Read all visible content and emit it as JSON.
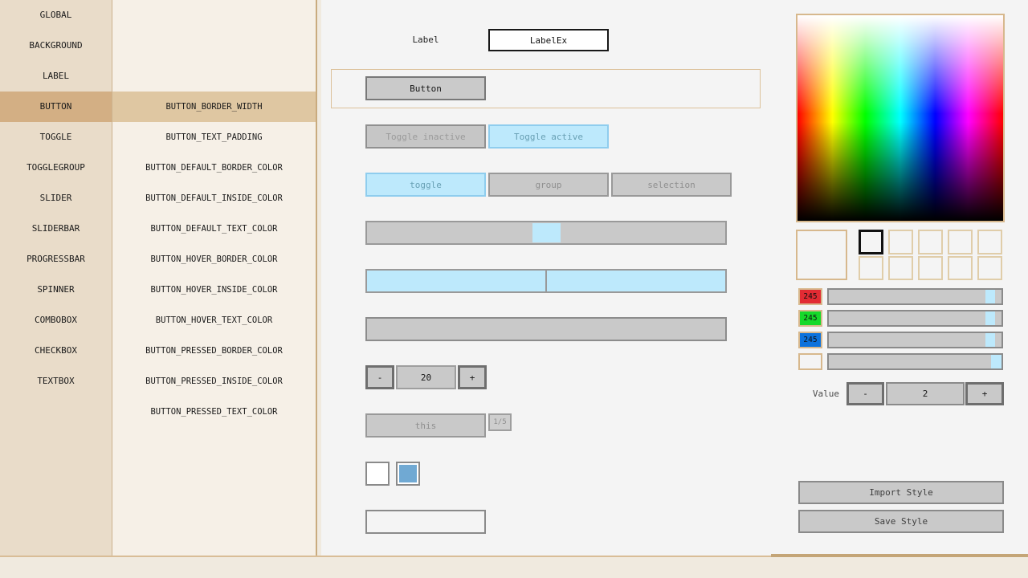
{
  "sidebar": {
    "items": [
      "GLOBAL",
      "BACKGROUND",
      "LABEL",
      "BUTTON",
      "TOGGLE",
      "TOGGLEGROUP",
      "SLIDER",
      "SLIDERBAR",
      "PROGRESSBAR",
      "SPINNER",
      "COMBOBOX",
      "CHECKBOX",
      "TEXTBOX"
    ],
    "selected": "BUTTON"
  },
  "properties": {
    "items": [
      "BUTTON_BORDER_WIDTH",
      "BUTTON_TEXT_PADDING",
      "BUTTON_DEFAULT_BORDER_COLOR",
      "BUTTON_DEFAULT_INSIDE_COLOR",
      "BUTTON_DEFAULT_TEXT_COLOR",
      "BUTTON_HOVER_BORDER_COLOR",
      "BUTTON_HOVER_INSIDE_COLOR",
      "BUTTON_HOVER_TEXT_COLOR",
      "BUTTON_PRESSED_BORDER_COLOR",
      "BUTTON_PRESSED_INSIDE_COLOR",
      "BUTTON_PRESSED_TEXT_COLOR"
    ],
    "selected": "BUTTON_BORDER_WIDTH"
  },
  "preview": {
    "label_caption": "Label",
    "label_value": "LabelEx",
    "button_label": "Button",
    "toggle_inactive_label": "Toggle inactive",
    "toggle_active_label": "Toggle active",
    "togglegroup": {
      "toggle": "toggle",
      "group": "group",
      "selection": "selection"
    },
    "spinner": {
      "minus": "-",
      "value": "20",
      "plus": "+"
    },
    "combobox": {
      "value": "this",
      "page": "1/5"
    }
  },
  "color_panel": {
    "channels": {
      "red": {
        "value": "245",
        "swatch": "#e22b33"
      },
      "green": {
        "value": "245",
        "swatch": "#15d92a"
      },
      "blue": {
        "value": "245",
        "swatch": "#0d72dc"
      },
      "alpha": {
        "value": "",
        "swatch": "transparent"
      }
    },
    "value_label": "Value",
    "value_spinner": {
      "minus": "-",
      "value": "2",
      "plus": "+"
    },
    "import_label": "Import Style",
    "save_label": "Save Style"
  },
  "colors": {
    "accent_blue": "#bde9fc",
    "checkbox_blue": "#70a9d3",
    "sidebar_selection": "#d3af84",
    "property_selection": "#dfc7a2",
    "picker_border": "#d7b88d"
  }
}
